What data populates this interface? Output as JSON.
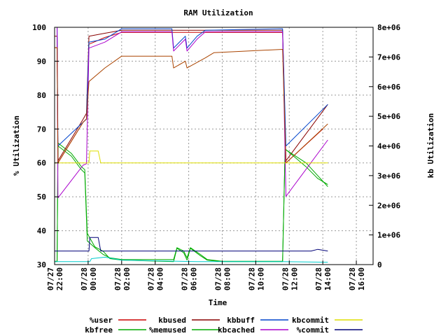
{
  "chart_data": {
    "type": "line",
    "title": "RAM Utilization",
    "xlabel": "Time",
    "ylabel_left": "% Utilization",
    "ylabel_right": "kb Utilization",
    "x_unit": "hours since 07/27 22:00",
    "xlim": [
      -0.5,
      18.5
    ],
    "ylim_left": [
      30,
      100
    ],
    "ylim_right": [
      0,
      8000000
    ],
    "grid": true,
    "legend_position": "bottom",
    "x_ticks": [
      {
        "x": -0.5,
        "date": "07/27",
        "time": "22:00"
      },
      {
        "x": 1.5,
        "date": "07/28",
        "time": "00:00"
      },
      {
        "x": 3.5,
        "date": "07/28",
        "time": "02:00"
      },
      {
        "x": 5.5,
        "date": "07/28",
        "time": "04:00"
      },
      {
        "x": 7.5,
        "date": "07/28",
        "time": "06:00"
      },
      {
        "x": 9.5,
        "date": "07/28",
        "time": "08:00"
      },
      {
        "x": 11.5,
        "date": "07/28",
        "time": "10:00"
      },
      {
        "x": 13.5,
        "date": "07/28",
        "time": "12:00"
      },
      {
        "x": 15.5,
        "date": "07/28",
        "time": "14:00"
      },
      {
        "x": 17.5,
        "date": "07/28",
        "time": "16:00"
      }
    ],
    "y_ticks_left": [
      "30",
      "40",
      "50",
      "60",
      "70",
      "80",
      "90",
      "100"
    ],
    "y_ticks_right": [
      "0",
      "1e+06",
      "2e+06",
      "3e+06",
      "4e+06",
      "5e+06",
      "6e+06",
      "7e+06",
      "8e+06"
    ],
    "series": [
      {
        "name": "%user",
        "axis": "left",
        "color": "#cc0000",
        "points": [
          [
            -0.5,
            94
          ],
          [
            -0.35,
            94
          ],
          [
            -0.3,
            60
          ],
          [
            1.2,
            72
          ],
          [
            1.4,
            73
          ],
          [
            1.55,
            95
          ],
          [
            2.5,
            97
          ],
          [
            3.5,
            98.5
          ],
          [
            6,
            98.5
          ],
          [
            7,
            98.5
          ],
          [
            8,
            98.5
          ],
          [
            13.1,
            98.5
          ],
          [
            13.3,
            60
          ],
          [
            15.5,
            70
          ]
        ]
      },
      {
        "name": "kbfree",
        "axis": "right",
        "color": "#00aa00",
        "points": [
          [
            -0.5,
            100000.0
          ],
          [
            -0.35,
            100000.0
          ],
          [
            -0.3,
            4100000.0
          ],
          [
            0.5,
            3750000.0
          ],
          [
            1.1,
            3300000.0
          ],
          [
            1.3,
            3200000.0
          ],
          [
            1.45,
            1050000.0
          ],
          [
            1.9,
            600000.0
          ],
          [
            2.4,
            450000.0
          ],
          [
            2.8,
            200000.0
          ],
          [
            3.5,
            150000.0
          ],
          [
            6.6,
            100000.0
          ],
          [
            6.8,
            550000.0
          ],
          [
            7.2,
            400000.0
          ],
          [
            7.4,
            150000.0
          ],
          [
            7.6,
            550000.0
          ],
          [
            8.2,
            300000.0
          ],
          [
            8.6,
            150000.0
          ],
          [
            9.5,
            100000.0
          ],
          [
            11.5,
            100000.0
          ],
          [
            13.1,
            100000.0
          ],
          [
            13.25,
            3900000.0
          ],
          [
            14.5,
            3300000.0
          ],
          [
            15.2,
            2900000.0
          ],
          [
            15.8,
            2700000.0
          ]
        ]
      },
      {
        "name": "kbused",
        "axis": "right",
        "color": "#880000",
        "points": [
          [
            -0.5,
            7700000.0
          ],
          [
            -0.35,
            7700000.0
          ],
          [
            -0.3,
            3500000.0
          ],
          [
            1.2,
            4900000.0
          ],
          [
            1.4,
            5100000.0
          ],
          [
            1.55,
            7700000.0
          ],
          [
            2.5,
            7800000.0
          ],
          [
            3.5,
            7900000.0
          ],
          [
            6.6,
            7900000.0
          ],
          [
            8,
            7900000.0
          ],
          [
            13.1,
            7900000.0
          ],
          [
            13.3,
            3500000.0
          ],
          [
            15.8,
            5400000.0
          ]
        ]
      },
      {
        "name": "%memused",
        "axis": "left",
        "color": "#00aa00",
        "points": [
          [
            -0.5,
            31
          ],
          [
            -0.35,
            31
          ],
          [
            -0.3,
            65
          ],
          [
            0.5,
            62
          ],
          [
            1.1,
            58
          ],
          [
            1.3,
            57
          ],
          [
            1.45,
            37
          ],
          [
            1.9,
            35
          ],
          [
            2.4,
            33
          ],
          [
            2.8,
            32
          ],
          [
            3.5,
            31.5
          ],
          [
            6.6,
            31.5
          ],
          [
            6.8,
            35
          ],
          [
            7.2,
            34
          ],
          [
            7.4,
            32
          ],
          [
            7.6,
            35
          ],
          [
            8.2,
            33
          ],
          [
            8.6,
            31.5
          ],
          [
            9.5,
            31
          ],
          [
            13.1,
            31
          ],
          [
            13.25,
            64
          ],
          [
            14.5,
            60
          ],
          [
            15.8,
            53
          ]
        ]
      },
      {
        "name": "kbbuff",
        "axis": "right",
        "color": "#0044cc",
        "points": [
          [
            -0.5,
            8000000.0
          ],
          [
            -0.35,
            8000000.0
          ],
          [
            -0.3,
            4000000.0
          ],
          [
            1.2,
            4800000.0
          ],
          [
            1.4,
            4900000.0
          ],
          [
            1.55,
            7500000.0
          ],
          [
            2.5,
            7600000.0
          ],
          [
            3.5,
            7950000.0
          ],
          [
            6.5,
            7950000.0
          ],
          [
            6.6,
            7300000.0
          ],
          [
            7.3,
            7700000.0
          ],
          [
            7.4,
            7300000.0
          ],
          [
            8,
            7700000.0
          ],
          [
            8.5,
            7900000.0
          ],
          [
            13.1,
            7950000.0
          ],
          [
            13.3,
            4000000.0
          ],
          [
            15.8,
            5400000.0
          ]
        ]
      },
      {
        "name": "kbcached",
        "axis": "right",
        "color": "#aa00cc",
        "points": [
          [
            -0.5,
            8000000.0
          ],
          [
            -0.35,
            8000000.0
          ],
          [
            -0.3,
            2250000.0
          ],
          [
            1.2,
            3350000.0
          ],
          [
            1.4,
            3400000.0
          ],
          [
            1.55,
            7300000.0
          ],
          [
            2.5,
            7500000.0
          ],
          [
            3.5,
            7850000.0
          ],
          [
            6.5,
            7850000.0
          ],
          [
            6.6,
            7200000.0
          ],
          [
            7.3,
            7600000.0
          ],
          [
            7.4,
            7200000.0
          ],
          [
            8,
            7600000.0
          ],
          [
            8.5,
            7850000.0
          ],
          [
            13.1,
            7850000.0
          ],
          [
            13.3,
            2300000.0
          ],
          [
            15.8,
            4200000.0
          ]
        ]
      },
      {
        "name": "kbcommit",
        "axis": "right",
        "color": "#00cccc",
        "points": [
          [
            -0.5,
            100000.0
          ],
          [
            1.6,
            100000.0
          ],
          [
            1.7,
            200000.0
          ],
          [
            2.5,
            250000.0
          ],
          [
            3.5,
            150000.0
          ],
          [
            8,
            100000.0
          ],
          [
            13.1,
            100000.0
          ],
          [
            15.8,
            80000.0
          ]
        ]
      },
      {
        "name": "%commit",
        "axis": "left",
        "color": "#aa4400",
        "points": [
          [
            -0.5,
            94
          ],
          [
            -0.35,
            94
          ],
          [
            -0.3,
            60
          ],
          [
            1.2,
            72
          ],
          [
            1.4,
            73
          ],
          [
            1.55,
            84
          ],
          [
            2.5,
            88
          ],
          [
            3.5,
            91.5
          ],
          [
            6.5,
            91.5
          ],
          [
            6.6,
            88
          ],
          [
            7.3,
            90
          ],
          [
            7.4,
            88
          ],
          [
            8.5,
            91
          ],
          [
            9,
            92.5
          ],
          [
            13.1,
            93.5
          ],
          [
            13.3,
            60
          ],
          [
            15.8,
            71.5
          ]
        ]
      },
      {
        "name": "kbcommit",
        "axis": "left",
        "color": "#dddd00",
        "points": [
          [
            -0.5,
            60
          ],
          [
            1.55,
            60
          ],
          [
            1.6,
            63.5
          ],
          [
            2.1,
            63.5
          ],
          [
            2.25,
            60
          ],
          [
            15.8,
            60
          ]
        ]
      },
      {
        "name": "%commit",
        "axis": "left",
        "color": "#000077",
        "points": [
          [
            -0.5,
            34
          ],
          [
            1.55,
            34
          ],
          [
            1.6,
            38
          ],
          [
            2.1,
            38
          ],
          [
            2.25,
            34
          ],
          [
            6.6,
            34
          ],
          [
            8,
            34
          ],
          [
            14.8,
            34
          ],
          [
            15.2,
            34.5
          ],
          [
            15.8,
            34
          ]
        ]
      }
    ]
  },
  "legend": [
    {
      "label": "%user",
      "color": "#cc0000"
    },
    {
      "label": "kbused",
      "color": "#880000"
    },
    {
      "label": "kbbuff",
      "color": "#0044cc"
    },
    {
      "label": "kbcommit",
      "color": "#dddd00"
    },
    {
      "label": "kbfree",
      "color": "#00aa00"
    },
    {
      "label": "%memused",
      "color": "#00aa00"
    },
    {
      "label": "kbcached",
      "color": "#aa00cc"
    },
    {
      "label": "%commit",
      "color": "#000077"
    }
  ]
}
